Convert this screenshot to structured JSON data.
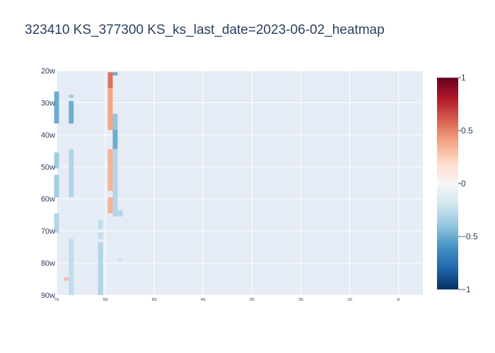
{
  "chart_data": {
    "type": "heatmap",
    "title": "323410 KS_377300 KS_ks_last_date=2023-06-02_heatmap",
    "xlabel": "",
    "ylabel": "",
    "x_tick_labels": [
      "75t",
      "65t",
      "55t",
      "45t",
      "35t",
      "25t",
      "15t",
      "5t"
    ],
    "x_tick_values": [
      75,
      65,
      55,
      45,
      35,
      25,
      15,
      5
    ],
    "x_range": [
      75,
      0
    ],
    "y_tick_labels": [
      "20w",
      "30w",
      "40w",
      "50w",
      "60w",
      "70w",
      "80w",
      "90w"
    ],
    "y_tick_values": [
      20,
      30,
      40,
      50,
      60,
      70,
      80,
      90
    ],
    "y_range": [
      20,
      90
    ],
    "colorscale": "RdBu",
    "zmin": -1,
    "zmax": 1,
    "colorbar_ticks": [
      "1",
      "0.5",
      "0",
      "−0.5",
      "−1"
    ],
    "colorbar_tick_values": [
      1,
      0.5,
      0,
      -0.5,
      -1
    ],
    "cell_width": 1,
    "cell_height": 1,
    "cells": [
      {
        "x": 75,
        "y": [
          27,
          36
        ],
        "z": -0.5
      },
      {
        "x": 75,
        "y": [
          46,
          50
        ],
        "z": -0.35
      },
      {
        "x": 75,
        "y": [
          53,
          59
        ],
        "z": -0.35
      },
      {
        "x": 75,
        "y": [
          65,
          70
        ],
        "z": -0.3
      },
      {
        "x": 72,
        "y": [
          28,
          28
        ],
        "z": -0.35
      },
      {
        "x": 72,
        "y": [
          30,
          36
        ],
        "z": -0.5
      },
      {
        "x": 72,
        "y": [
          45,
          59
        ],
        "z": -0.3
      },
      {
        "x": 72,
        "y": [
          73,
          90
        ],
        "z": -0.25
      },
      {
        "x": 73,
        "y": [
          85,
          85
        ],
        "z": 0.3
      },
      {
        "x": 66,
        "y": [
          67,
          69
        ],
        "z": -0.25
      },
      {
        "x": 66,
        "y": [
          71,
          72
        ],
        "z": -0.25
      },
      {
        "x": 66,
        "y": [
          74,
          90
        ],
        "z": -0.3
      },
      {
        "x": 64,
        "y": [
          21,
          25
        ],
        "z": 0.55
      },
      {
        "x": 64,
        "y": [
          26,
          38
        ],
        "z": 0.4
      },
      {
        "x": 64,
        "y": [
          45,
          57
        ],
        "z": 0.35
      },
      {
        "x": 64,
        "y": [
          60,
          64
        ],
        "z": 0.35
      },
      {
        "x": 63,
        "y": [
          21,
          21
        ],
        "z": -0.5
      },
      {
        "x": 63,
        "y": [
          34,
          38
        ],
        "z": -0.4
      },
      {
        "x": 63,
        "y": [
          39,
          44
        ],
        "z": -0.5
      },
      {
        "x": 63,
        "y": [
          45,
          65
        ],
        "z": -0.3
      },
      {
        "x": 62,
        "y": [
          64,
          65
        ],
        "z": -0.3
      },
      {
        "x": 62,
        "y": [
          79,
          79
        ],
        "z": -0.2
      }
    ]
  }
}
